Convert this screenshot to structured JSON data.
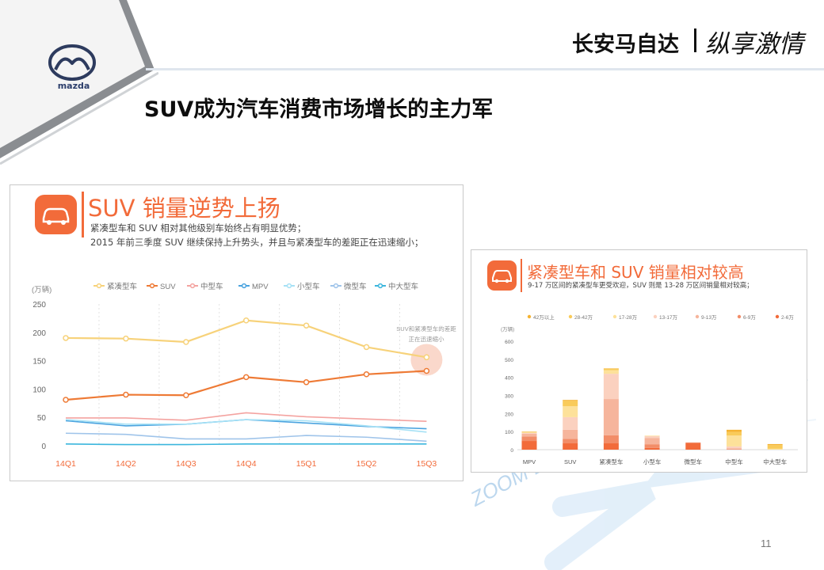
{
  "header": {
    "brand_logo_text": "mazda",
    "brand_name": "长安马自达",
    "slogan": "纵享激情"
  },
  "slide": {
    "title": "SUV成为汽车消费市场增长的主力军",
    "page_number": "11",
    "watermark": "ZOOM-ZOOM"
  },
  "colors": {
    "accent": "#f26b3a",
    "header_line": "#dfe6ee"
  },
  "panel_left": {
    "heading": "SUV 销量逆势上扬",
    "icon": "car-icon",
    "subtitle_line1": "紧凑型车和 SUV 相对其他级别车始终占有明显优势；",
    "subtitle_line2": "2015 年前三季度 SUV 继续保持上升势头，并且与紧凑型车的差距正在迅速缩小；",
    "annotation_line1": "SUV和紧凑型车的差距",
    "annotation_line2": "正在迅速缩小"
  },
  "panel_right": {
    "heading": "紧凑型车和 SUV 销量相对较高",
    "icon": "car-icon",
    "subtitle": "9-17 万区间的紧凑型车更受欢迎，SUV 则是 13-28 万区间销量相对较高；"
  },
  "chart_data": [
    {
      "type": "line",
      "unit": "(万辆)",
      "categories": [
        "14Q1",
        "14Q2",
        "14Q3",
        "14Q4",
        "15Q1",
        "15Q2",
        "15Q3"
      ],
      "ylim": [
        0,
        250
      ],
      "yticks": [
        "0",
        "50",
        "100",
        "150",
        "200",
        "250"
      ],
      "grid": "vertical dashed",
      "legend_position": "top",
      "series": [
        {
          "name": "紧凑型车",
          "color": "#f7d27a",
          "values": [
            190,
            189,
            183,
            221,
            212,
            174,
            156
          ]
        },
        {
          "name": "SUV",
          "color": "#ee7a35",
          "values": [
            81,
            90,
            89,
            121,
            112,
            126,
            132
          ]
        },
        {
          "name": "中型车",
          "color": "#f4a3a0",
          "values": [
            49,
            49,
            45,
            58,
            51,
            47,
            43
          ]
        },
        {
          "name": "MPV",
          "color": "#4aa3df",
          "values": [
            44,
            35,
            38,
            46,
            40,
            34,
            30
          ]
        },
        {
          "name": "小型车",
          "color": "#a6e1f5",
          "values": [
            46,
            38,
            38,
            46,
            44,
            35,
            24
          ]
        },
        {
          "name": "微型车",
          "color": "#9fc4ea",
          "values": [
            22,
            20,
            12,
            12,
            18,
            15,
            8
          ]
        },
        {
          "name": "中大型车",
          "color": "#3bb6dd",
          "values": [
            3,
            2,
            2,
            3,
            3,
            3,
            3
          ]
        }
      ]
    },
    {
      "type": "bar",
      "stacked": true,
      "unit": "(万辆)",
      "categories": [
        "MPV",
        "SUV",
        "紧凑型车",
        "小型车",
        "微型车",
        "中型车",
        "中大型车"
      ],
      "ylim": [
        0,
        600
      ],
      "yticks": [
        "0",
        "100",
        "200",
        "300",
        "400",
        "500",
        "600"
      ],
      "legend_position": "top",
      "series": [
        {
          "name": "2-6万",
          "color": "#f26b3a",
          "values": [
            48,
            35,
            35,
            10,
            35,
            0,
            0
          ]
        },
        {
          "name": "6-9万",
          "color": "#f28d68",
          "values": [
            25,
            25,
            45,
            20,
            5,
            3,
            0
          ]
        },
        {
          "name": "9-13万",
          "color": "#f6b59c",
          "values": [
            15,
            50,
            200,
            35,
            0,
            5,
            0
          ]
        },
        {
          "name": "13-17万",
          "color": "#fbd1bf",
          "values": [
            5,
            70,
            140,
            10,
            0,
            10,
            0
          ]
        },
        {
          "name": "17-28万",
          "color": "#fde19a",
          "values": [
            2,
            60,
            20,
            3,
            0,
            60,
            5
          ]
        },
        {
          "name": "28-42万",
          "color": "#f9cb5a",
          "values": [
            3,
            30,
            8,
            0,
            0,
            20,
            20
          ]
        },
        {
          "name": "42万以上",
          "color": "#f5b332",
          "values": [
            2,
            5,
            2,
            0,
            0,
            12,
            6
          ]
        }
      ]
    }
  ]
}
